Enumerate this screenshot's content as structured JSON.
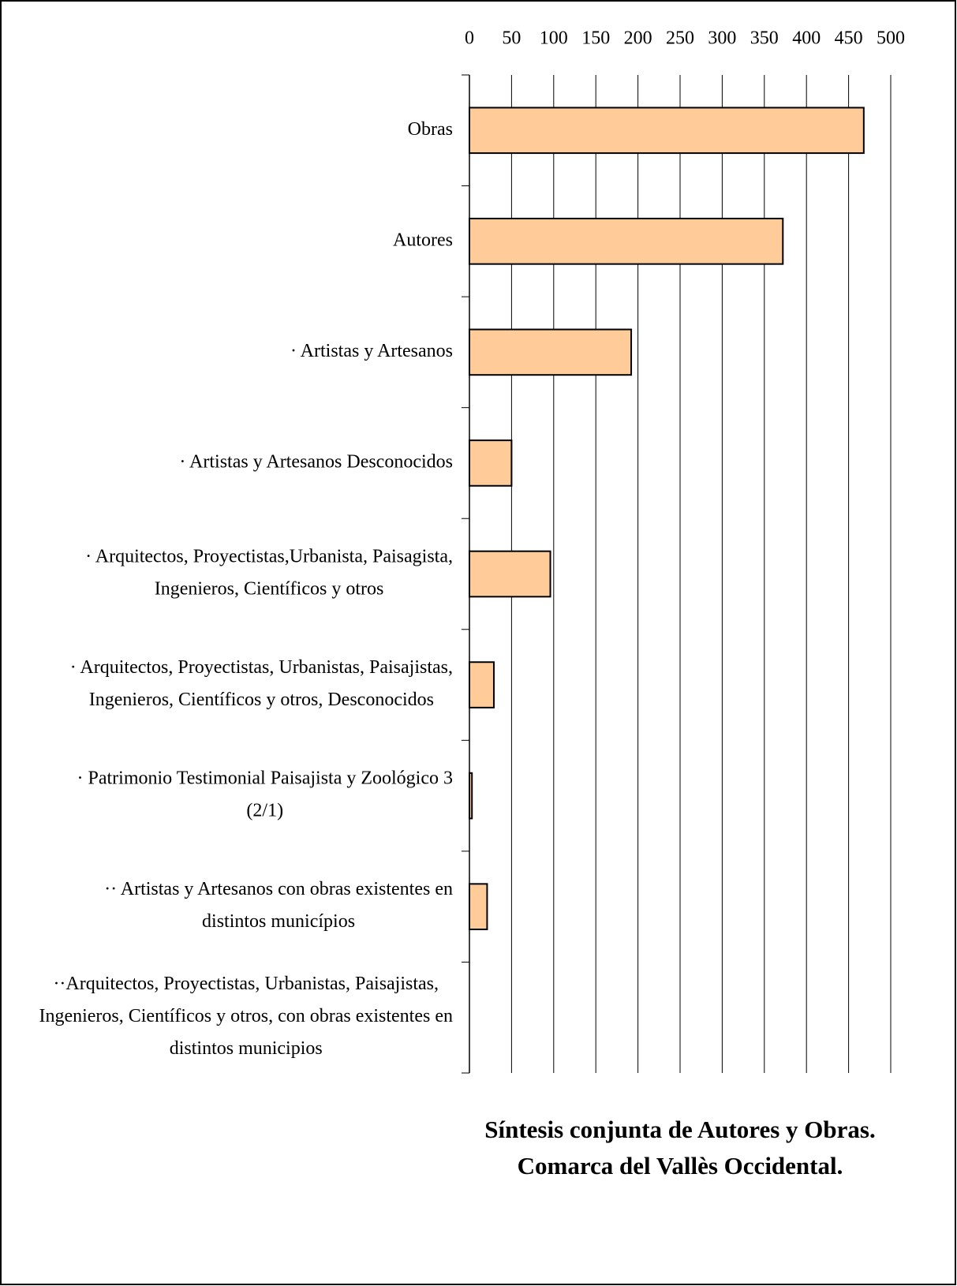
{
  "chart_data": {
    "type": "bar",
    "orientation": "horizontal",
    "title": [
      "Síntesis conjunta de Autores y Obras.",
      "Comarca del Vallès Occidental."
    ],
    "categories": [
      [
        "Obras"
      ],
      [
        "Autores"
      ],
      [
        "· Artistas y Artesanos"
      ],
      [
        "· Artistas y Artesanos Desconocidos"
      ],
      [
        "· Arquitectos, Proyectistas,Urbanista, Paisagista,",
        "Ingenieros, Científicos y otros"
      ],
      [
        "· Arquitectos, Proyectistas, Urbanistas, Paisajistas,",
        "Ingenieros, Científicos y otros, Desconocidos"
      ],
      [
        "· Patrimonio Testimonial Paisajista y Zoológico 3",
        "(2/1)"
      ],
      [
        "·· Artistas y Artesanos con obras existentes en",
        "distintos municípios"
      ],
      [
        "··Arquitectos, Proyectistas, Urbanistas, Paisajistas,",
        "Ingenieros, Científicos y otros, con obras existentes en",
        "distintos municipios"
      ]
    ],
    "values": [
      468,
      372,
      192,
      50,
      96,
      29,
      3,
      21,
      0
    ],
    "color": "#ffcc99",
    "xlim": [
      0,
      500
    ],
    "xticks": [
      0,
      50,
      100,
      150,
      200,
      250,
      300,
      350,
      400,
      450,
      500
    ],
    "grid": true
  }
}
